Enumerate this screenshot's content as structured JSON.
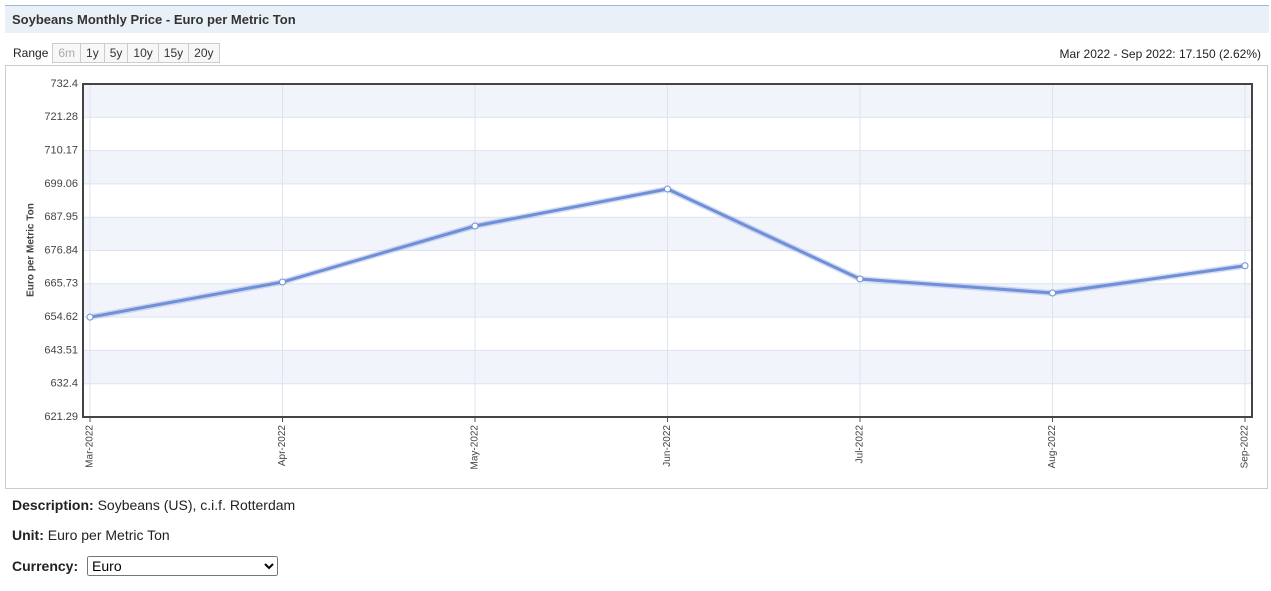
{
  "header": {
    "title": "Soybeans Monthly Price - Euro per Metric Ton"
  },
  "range": {
    "label": "Range",
    "buttons": [
      "6m",
      "1y",
      "5y",
      "10y",
      "15y",
      "20y"
    ],
    "summary": "Mar 2022 - Sep 2022: 17.150 (2.62%)"
  },
  "chart_data": {
    "type": "line",
    "y_label": "Euro per Metric Ton",
    "categories": [
      "Mar-2022",
      "Apr-2022",
      "May-2022",
      "Jun-2022",
      "Jul-2022",
      "Aug-2022",
      "Sep-2022"
    ],
    "series": [
      {
        "name": "Soybeans",
        "color": "#6f8fd8",
        "values": [
          654.6,
          666.33,
          685.02,
          697.37,
          667.33,
          662.66,
          671.75
        ]
      }
    ],
    "ylim": [
      621.29,
      732.4
    ],
    "yticks": [
      621.29,
      632.4,
      643.51,
      654.62,
      665.73,
      676.84,
      687.95,
      699.06,
      710.17,
      721.28,
      732.4
    ],
    "grid": true
  },
  "info": {
    "description_label": "Description:",
    "description": "Soybeans (US), c.i.f. Rotterdam",
    "unit_label": "Unit:",
    "unit": "Euro per Metric Ton",
    "currency_label": "Currency:",
    "currency": "Euro"
  }
}
